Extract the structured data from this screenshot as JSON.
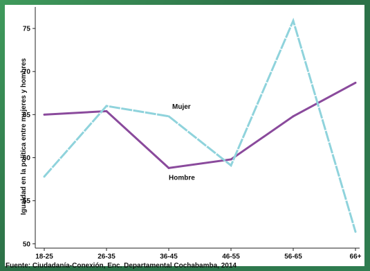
{
  "chart_data": {
    "type": "line",
    "categories": [
      "18-25",
      "26-35",
      "36-45",
      "46-55",
      "56-65",
      "66+"
    ],
    "series": [
      {
        "name": "Hombre",
        "color": "#8a4a9c",
        "values": [
          65.0,
          65.4,
          58.8,
          59.8,
          64.8,
          68.7
        ]
      },
      {
        "name": "Mujer",
        "color": "#8fd3dc",
        "dashed": true,
        "values": [
          57.8,
          66.0,
          64.8,
          59.1,
          75.9,
          51.4
        ]
      }
    ],
    "ylabel": "Igualdad en la política entre mujeres y hombres",
    "xlabel": "",
    "ylim": [
      49.5,
      77.5
    ],
    "yticks": [
      50,
      55,
      60,
      65,
      70,
      75
    ],
    "grid": false,
    "legend": "inline labels"
  },
  "source_note": "Fuente: Ciudadanía-Conexión, Enc. Departamental Cochabamba, 2014"
}
